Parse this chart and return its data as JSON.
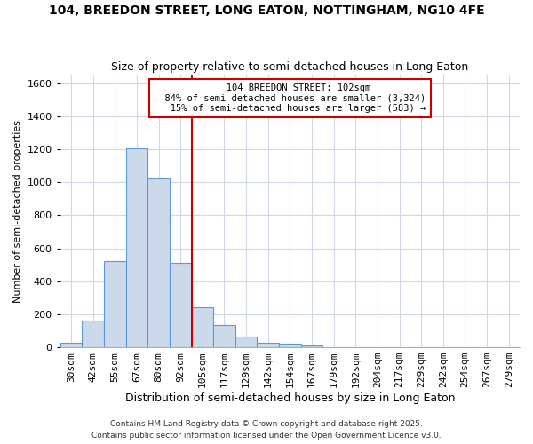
{
  "title1": "104, BREEDON STREET, LONG EATON, NOTTINGHAM, NG10 4FE",
  "title2": "Size of property relative to semi-detached houses in Long Eaton",
  "xlabel": "Distribution of semi-detached houses by size in Long Eaton",
  "ylabel": "Number of semi-detached properties",
  "bin_labels": [
    "30sqm",
    "42sqm",
    "55sqm",
    "67sqm",
    "80sqm",
    "92sqm",
    "105sqm",
    "117sqm",
    "129sqm",
    "142sqm",
    "154sqm",
    "167sqm",
    "179sqm",
    "192sqm",
    "204sqm",
    "217sqm",
    "229sqm",
    "242sqm",
    "254sqm",
    "267sqm",
    "279sqm"
  ],
  "bar_values": [
    30,
    160,
    525,
    1205,
    1025,
    510,
    245,
    135,
    65,
    30,
    20,
    10,
    0,
    0,
    0,
    0,
    0,
    0,
    0,
    0,
    0
  ],
  "bar_color": "#ccd9ea",
  "bar_edgecolor": "#5b9bd5",
  "vline_bin_index": 6,
  "property_line_label": "104 BREEDON STREET: 102sqm",
  "pct_smaller": 84,
  "num_smaller": 3324,
  "pct_larger": 15,
  "num_larger": 583,
  "vline_color": "#cc0000",
  "annotation_box_color": "#cc0000",
  "background_color": "#ffffff",
  "grid_color": "#d0d8e8",
  "ylim": [
    0,
    1650
  ],
  "yticks": [
    0,
    200,
    400,
    600,
    800,
    1000,
    1200,
    1400,
    1600
  ],
  "footer1": "Contains HM Land Registry data © Crown copyright and database right 2025.",
  "footer2": "Contains public sector information licensed under the Open Government Licence v3.0."
}
